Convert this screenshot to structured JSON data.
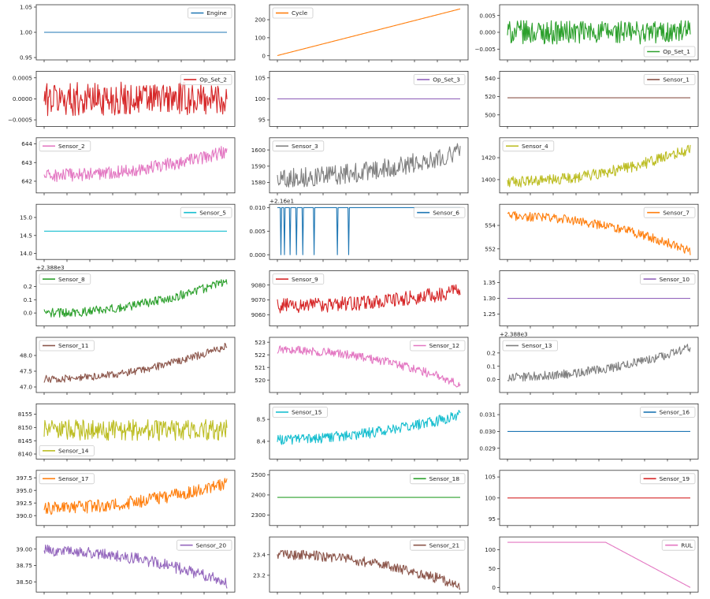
{
  "chart_data": {
    "type": "line",
    "layout": {
      "rows": 9,
      "cols": 3
    },
    "x": {
      "start": 1,
      "end": 260
    },
    "panels": [
      {
        "name": "Engine",
        "color": "#1f77b4",
        "legend": "top-right",
        "ylim": [
          0.95,
          1.05
        ],
        "yticks": [
          "0.95",
          "1.00",
          "1.05"
        ],
        "signal": {
          "kind": "const",
          "base": 1.0
        }
      },
      {
        "name": "Cycle",
        "color": "#ff7f0e",
        "legend": "top-left",
        "ylim": [
          -10,
          270
        ],
        "yticks": [
          "0",
          "100",
          "200"
        ],
        "signal": {
          "kind": "linear",
          "from": 1,
          "to": 260
        }
      },
      {
        "name": "Op_Set_1",
        "color": "#2ca02c",
        "legend": "bottom-right",
        "ylim": [
          -0.0075,
          0.0075
        ],
        "yticks": [
          "−0.005",
          "0.000",
          "0.005"
        ],
        "signal": {
          "kind": "noise",
          "base": 0,
          "amp": 0.0035
        }
      },
      {
        "name": "Op_Set_2",
        "color": "#d62728",
        "legend": "top-right",
        "ylim": [
          -0.0006,
          0.0006
        ],
        "yticks": [
          "−0.0005",
          "0.0000",
          "0.0005"
        ],
        "signal": {
          "kind": "noise",
          "base": 0,
          "amp": 0.0004
        }
      },
      {
        "name": "Op_Set_3",
        "color": "#9467bd",
        "legend": "top-right",
        "ylim": [
          94,
          106
        ],
        "yticks": [
          "95",
          "100",
          "105"
        ],
        "signal": {
          "kind": "const",
          "base": 100
        }
      },
      {
        "name": "Sensor_1",
        "color": "#8c564b",
        "legend": "top-right",
        "ylim": [
          490,
          545
        ],
        "yticks": [
          "500",
          "520",
          "540"
        ],
        "signal": {
          "kind": "const",
          "base": 518.67
        }
      },
      {
        "name": "Sensor_2",
        "color": "#e377c2",
        "legend": "top-left",
        "ylim": [
          641.5,
          644.2
        ],
        "yticks": [
          "642",
          "643",
          "644"
        ],
        "signal": {
          "kind": "trend",
          "base": 642.3,
          "rise": 1.3,
          "amp": 0.35
        }
      },
      {
        "name": "Sensor_3",
        "color": "#7f7f7f",
        "legend": "top-left",
        "ylim": [
          1575,
          1606
        ],
        "yticks": [
          "1580",
          "1590",
          "1600"
        ],
        "signal": {
          "kind": "trend",
          "base": 1583,
          "rise": 16,
          "amp": 6
        }
      },
      {
        "name": "Sensor_4",
        "color": "#bcbd22",
        "legend": "top-left",
        "ylim": [
          1390,
          1436
        ],
        "yticks": [
          "1400",
          "1420"
        ],
        "signal": {
          "kind": "trend",
          "base": 1398,
          "rise": 30,
          "amp": 5
        }
      },
      {
        "name": "Sensor_5",
        "color": "#17becf",
        "legend": "top-right",
        "ylim": [
          13.9,
          15.3
        ],
        "yticks": [
          "14.0",
          "14.5",
          "15.0"
        ],
        "signal": {
          "kind": "const",
          "base": 14.62
        }
      },
      {
        "name": "Sensor_6",
        "color": "#1f77b4",
        "legend": "top-right",
        "ylim": [
          -0.0005,
          0.0102
        ],
        "yticks": [
          "0.000",
          "0.005",
          "0.010"
        ],
        "offset_label": "+2.16e1",
        "signal": {
          "kind": "dips",
          "base": 0.01,
          "low": 0.0,
          "at": [
            5,
            10,
            18,
            27,
            36,
            52,
            85,
            101
          ]
        }
      },
      {
        "name": "Sensor_7",
        "color": "#ff7f0e",
        "legend": "top-right",
        "ylim": [
          551.3,
          555.6
        ],
        "yticks": [
          "552",
          "554"
        ],
        "signal": {
          "kind": "trend",
          "base": 554.8,
          "rise": -3.0,
          "amp": 0.4
        }
      },
      {
        "name": "Sensor_8",
        "color": "#2ca02c",
        "legend": "top-left",
        "ylim": [
          -0.08,
          0.3
        ],
        "yticks": [
          "0.0",
          "0.1",
          "0.2"
        ],
        "offset_label": "+2.388e3",
        "signal": {
          "kind": "trend",
          "base": 0.0,
          "rise": 0.24,
          "amp": 0.035
        }
      },
      {
        "name": "Sensor_9",
        "color": "#d62728",
        "legend": "top-left",
        "ylim": [
          9054,
          9088
        ],
        "yticks": [
          "9060",
          "9070",
          "9080"
        ],
        "signal": {
          "kind": "trend",
          "base": 9066,
          "rise": 10,
          "amp": 5
        }
      },
      {
        "name": "Sensor_10",
        "color": "#9467bd",
        "legend": "top-right",
        "ylim": [
          1.22,
          1.38
        ],
        "yticks": [
          "1.25",
          "1.30",
          "1.35"
        ],
        "signal": {
          "kind": "const",
          "base": 1.3
        }
      },
      {
        "name": "Sensor_11",
        "color": "#8c564b",
        "legend": "top-left",
        "ylim": [
          46.9,
          48.5
        ],
        "yticks": [
          "47.0",
          "47.5",
          "48.0"
        ],
        "signal": {
          "kind": "trend",
          "base": 47.25,
          "rise": 1.05,
          "amp": 0.12
        }
      },
      {
        "name": "Sensor_12",
        "color": "#e377c2",
        "legend": "top-right",
        "ylim": [
          519.2,
          523.2
        ],
        "yticks": [
          "520",
          "521",
          "522",
          "523"
        ],
        "signal": {
          "kind": "trend",
          "base": 522.4,
          "rise": -2.7,
          "amp": 0.35
        }
      },
      {
        "name": "Sensor_13",
        "color": "#7f7f7f",
        "legend": "top-left",
        "ylim": [
          -0.08,
          0.3
        ],
        "yticks": [
          "0.0",
          "0.1",
          "0.2"
        ],
        "offset_label": "+2.388e3",
        "signal": {
          "kind": "trend",
          "base": 0.02,
          "rise": 0.22,
          "amp": 0.035
        }
      },
      {
        "name": "Sensor_14",
        "color": "#bcbd22",
        "legend": "bottom-left",
        "ylim": [
          8139,
          8158
        ],
        "yticks": [
          "8140",
          "8145",
          "8150",
          "8155"
        ],
        "signal": {
          "kind": "noise",
          "base": 8149,
          "amp": 4
        }
      },
      {
        "name": "Sensor_15",
        "color": "#17becf",
        "legend": "top-left",
        "ylim": [
          8.33,
          8.56
        ],
        "yticks": [
          "8.4",
          "8.5"
        ],
        "signal": {
          "kind": "trend",
          "base": 8.41,
          "rise": 0.11,
          "amp": 0.025
        }
      },
      {
        "name": "Sensor_16",
        "color": "#1f77b4",
        "legend": "top-right",
        "ylim": [
          0.0285,
          0.0315
        ],
        "yticks": [
          "0.029",
          "0.030",
          "0.031"
        ],
        "signal": {
          "kind": "const",
          "base": 0.03
        }
      },
      {
        "name": "Sensor_17",
        "color": "#ff7f0e",
        "legend": "top-left",
        "ylim": [
          388.5,
          398.5
        ],
        "yticks": [
          "390.0",
          "392.5",
          "395.0",
          "397.5"
        ],
        "signal": {
          "kind": "trend",
          "base": 391.5,
          "rise": 5.0,
          "amp": 1.3
        }
      },
      {
        "name": "Sensor_18",
        "color": "#2ca02c",
        "legend": "top-right",
        "ylim": [
          2260,
          2510
        ],
        "yticks": [
          "2300",
          "2400",
          "2500"
        ],
        "signal": {
          "kind": "const",
          "base": 2388
        }
      },
      {
        "name": "Sensor_19",
        "color": "#d62728",
        "legend": "top-right",
        "ylim": [
          94,
          106
        ],
        "yticks": [
          "95",
          "100",
          "105"
        ],
        "signal": {
          "kind": "const",
          "base": 100
        }
      },
      {
        "name": "Sensor_20",
        "color": "#9467bd",
        "legend": "top-right",
        "ylim": [
          38.38,
          39.15
        ],
        "yticks": [
          "38.50",
          "38.75",
          "39.00"
        ],
        "signal": {
          "kind": "trend",
          "base": 38.98,
          "rise": -0.5,
          "amp": 0.09
        }
      },
      {
        "name": "Sensor_21",
        "color": "#8c564b",
        "legend": "top-right",
        "ylim": [
          23.06,
          23.55
        ],
        "yticks": [
          "23.2",
          "23.4"
        ],
        "signal": {
          "kind": "trend",
          "base": 23.4,
          "rise": -0.3,
          "amp": 0.05
        }
      },
      {
        "name": "RUL",
        "color": "#e377c2",
        "legend": "top-right",
        "ylim": [
          -6,
          128
        ],
        "yticks": [
          "0",
          "50",
          "100"
        ],
        "signal": {
          "kind": "rul",
          "cap": 120
        }
      }
    ]
  }
}
